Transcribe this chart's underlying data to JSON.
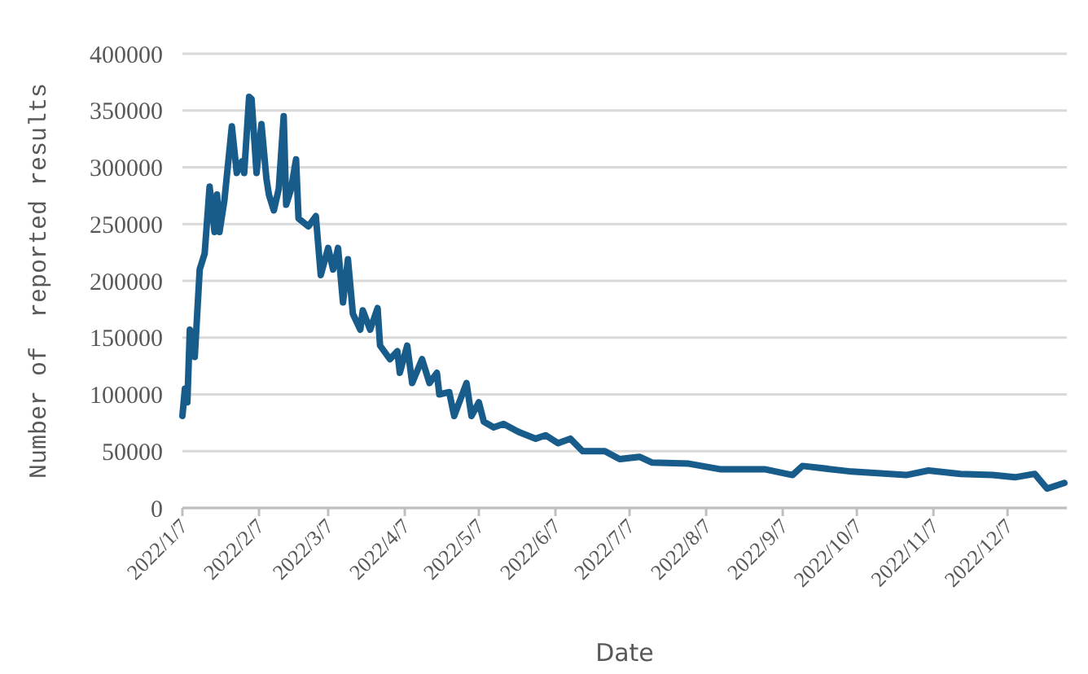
{
  "chart_data": {
    "type": "line",
    "xlabel": "Date",
    "ylabel": "Number of  reported results",
    "x": [
      "2022-01-07",
      "2022-01-08",
      "2022-01-09",
      "2022-01-10",
      "2022-01-12",
      "2022-01-14",
      "2022-01-16",
      "2022-01-18",
      "2022-01-20",
      "2022-01-21",
      "2022-01-22",
      "2022-01-24",
      "2022-01-27",
      "2022-01-29",
      "2022-01-31",
      "2022-02-01",
      "2022-02-03",
      "2022-02-04",
      "2022-02-06",
      "2022-02-08",
      "2022-02-10",
      "2022-02-11",
      "2022-02-13",
      "2022-02-15",
      "2022-02-17",
      "2022-02-18",
      "2022-02-20",
      "2022-02-22",
      "2022-02-23",
      "2022-02-27",
      "2022-03-02",
      "2022-03-04",
      "2022-03-07",
      "2022-03-09",
      "2022-03-11",
      "2022-03-13",
      "2022-03-15",
      "2022-03-17",
      "2022-03-20",
      "2022-03-21",
      "2022-03-24",
      "2022-03-27",
      "2022-03-28",
      "2022-04-01",
      "2022-04-04",
      "2022-04-05",
      "2022-04-08",
      "2022-04-10",
      "2022-04-14",
      "2022-04-17",
      "2022-04-20",
      "2022-04-21",
      "2022-04-25",
      "2022-04-27",
      "2022-05-02",
      "2022-05-04",
      "2022-05-07",
      "2022-05-09",
      "2022-05-13",
      "2022-05-17",
      "2022-05-23",
      "2022-05-30",
      "2022-06-03",
      "2022-06-08",
      "2022-06-13",
      "2022-06-18",
      "2022-06-27",
      "2022-07-03",
      "2022-07-11",
      "2022-07-16",
      "2022-07-31",
      "2022-08-13",
      "2022-08-31",
      "2022-09-11",
      "2022-09-15",
      "2022-10-05",
      "2022-10-27",
      "2022-11-05",
      "2022-11-18",
      "2022-12-01",
      "2022-12-10",
      "2022-12-18",
      "2022-12-23",
      "2022-12-30"
    ],
    "series": [
      {
        "color": "#175c8a",
        "values": [
          81000,
          105000,
          93000,
          157000,
          133000,
          210000,
          224000,
          283000,
          243000,
          276000,
          243000,
          271000,
          336000,
          295000,
          305000,
          295000,
          362000,
          360000,
          295000,
          338000,
          290000,
          276000,
          262000,
          281000,
          345000,
          267000,
          281000,
          307000,
          255000,
          248000,
          257000,
          205000,
          229000,
          210000,
          229000,
          181000,
          219000,
          171000,
          157000,
          174000,
          157000,
          176000,
          143000,
          131000,
          138000,
          119000,
          143000,
          110000,
          131000,
          110000,
          119000,
          100000,
          102000,
          81000,
          110000,
          81000,
          93000,
          76000,
          71000,
          74000,
          67000,
          61000,
          64000,
          57000,
          61000,
          50000,
          50000,
          43000,
          45000,
          40000,
          39000,
          34000,
          34000,
          29000,
          37000,
          32000,
          29000,
          33000,
          30000,
          29000,
          27000,
          30000,
          17000,
          22000
        ]
      }
    ],
    "xlim": [
      "2022-01-07",
      "2022-12-31"
    ],
    "xticks": [
      {
        "value": "2022-01-07",
        "label": "2022/1/7"
      },
      {
        "value": "2022-02-07",
        "label": "2022/2/7"
      },
      {
        "value": "2022-03-07",
        "label": "2022/3/7"
      },
      {
        "value": "2022-04-07",
        "label": "2022/4/7"
      },
      {
        "value": "2022-05-07",
        "label": "2022/5/7"
      },
      {
        "value": "2022-06-07",
        "label": "2022/6/7"
      },
      {
        "value": "2022-07-07",
        "label": "2022/7/7"
      },
      {
        "value": "2022-08-07",
        "label": "2022/8/7"
      },
      {
        "value": "2022-09-07",
        "label": "2022/9/7"
      },
      {
        "value": "2022-10-07",
        "label": "2022/10/7"
      },
      {
        "value": "2022-11-07",
        "label": "2022/11/7"
      },
      {
        "value": "2022-12-07",
        "label": "2022/12/7"
      }
    ],
    "ylim": [
      0,
      400000
    ],
    "yticks": [
      0,
      50000,
      100000,
      150000,
      200000,
      250000,
      300000,
      350000,
      400000
    ],
    "grid": "y",
    "marker": "none",
    "line_style": "solid"
  }
}
